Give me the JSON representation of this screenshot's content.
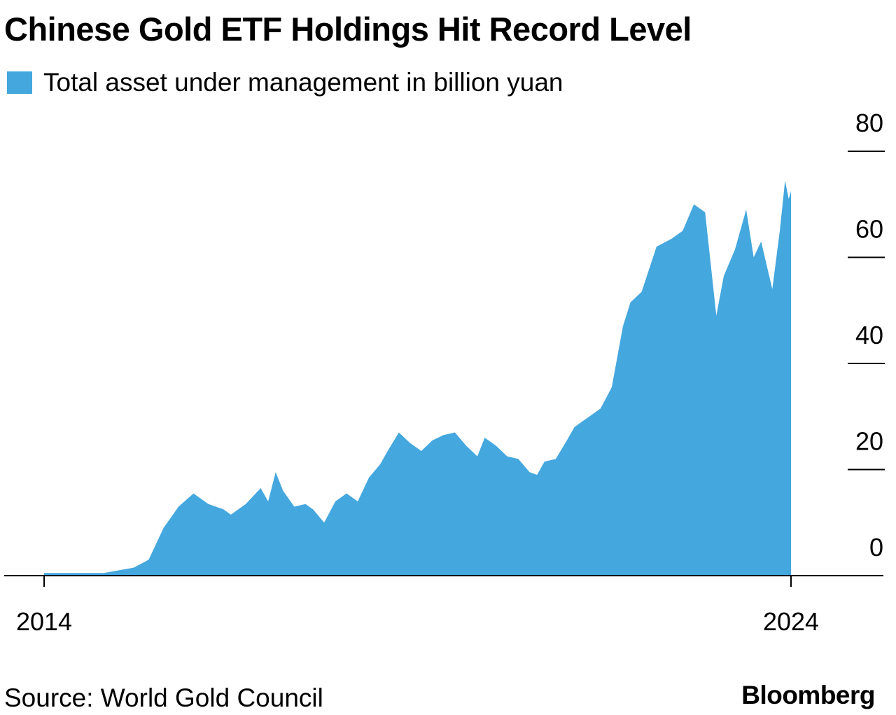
{
  "title": "Chinese Gold ETF Holdings Hit Record Level",
  "source": "Source: World Gold Council",
  "brand": "Bloomberg",
  "colors": {
    "area": "#44a7de",
    "axis": "#000000",
    "text": "#000000"
  },
  "chart_data": {
    "type": "area",
    "title": "Chinese Gold ETF Holdings Hit Record Level",
    "legend": [
      "Total asset under management in billion yuan"
    ],
    "legend_position": "top-left",
    "xlabel": "",
    "ylabel": "",
    "xlim": [
      2014,
      2024
    ],
    "ylim": [
      0,
      80
    ],
    "y_ticks": [
      "0",
      "20",
      "40",
      "60",
      "80"
    ],
    "x_ticks": [
      "2014",
      "2024"
    ],
    "grid": false,
    "series": [
      {
        "name": "Total asset under management in billion yuan",
        "x": [
          2014.0,
          2014.8,
          2015.0,
          2015.2,
          2015.4,
          2015.6,
          2015.8,
          2016.0,
          2016.2,
          2016.4,
          2016.5,
          2016.7,
          2016.9,
          2017.0,
          2017.1,
          2017.2,
          2017.35,
          2017.5,
          2017.6,
          2017.75,
          2017.9,
          2018.05,
          2018.2,
          2018.35,
          2018.5,
          2018.6,
          2018.75,
          2018.9,
          2019.05,
          2019.2,
          2019.35,
          2019.5,
          2019.65,
          2019.8,
          2019.9,
          2020.05,
          2020.2,
          2020.35,
          2020.5,
          2020.6,
          2020.7,
          2020.85,
          2021.0,
          2021.1,
          2021.2,
          2021.3,
          2021.45,
          2021.6,
          2021.75,
          2021.85,
          2022.0,
          2022.2,
          2022.4,
          2022.55,
          2022.7,
          2022.85,
          2023.0,
          2023.1,
          2023.25,
          2023.4,
          2023.5,
          2023.6,
          2023.75,
          2023.85,
          2023.92,
          2023.97,
          2024.0
        ],
        "values": [
          0.5,
          0.5,
          1.0,
          1.5,
          3.0,
          9.0,
          13.0,
          15.5,
          13.5,
          12.5,
          11.5,
          13.5,
          16.5,
          14.0,
          19.5,
          16.0,
          13.0,
          13.5,
          12.5,
          10.0,
          14.0,
          15.5,
          14.0,
          18.5,
          21.0,
          23.5,
          27.0,
          25.0,
          23.5,
          25.5,
          26.5,
          27.0,
          24.5,
          22.5,
          26.0,
          24.5,
          22.5,
          22.0,
          19.5,
          19.0,
          21.5,
          22.0,
          25.5,
          28.0,
          29.0,
          30.0,
          31.5,
          35.5,
          47.0,
          51.5,
          53.5,
          62.0,
          63.5,
          65.0,
          70.0,
          68.5,
          49.0,
          56.5,
          61.5,
          69.0,
          60.0,
          63.0,
          54.0,
          65.0,
          74.5,
          71.0,
          72.5
        ]
      }
    ]
  }
}
